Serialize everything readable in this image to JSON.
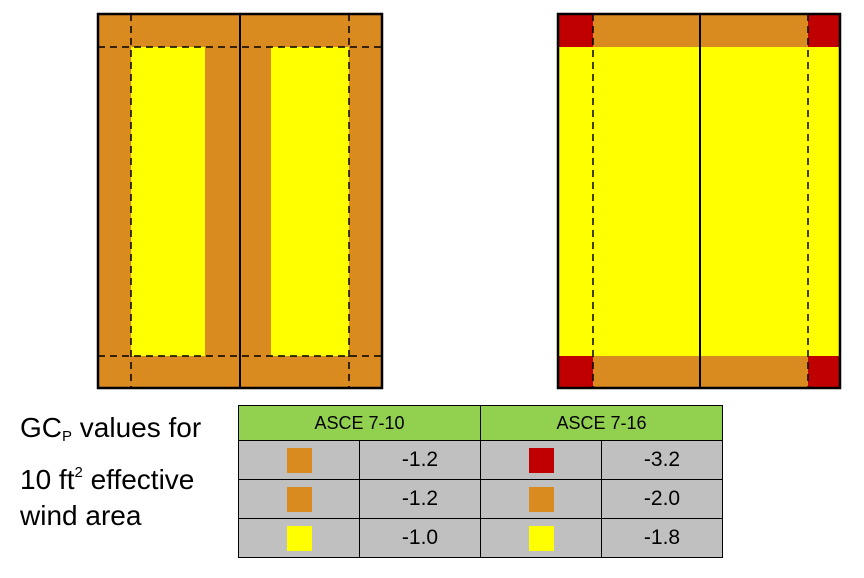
{
  "colors": {
    "orange": "#d98b1f",
    "yellow": "#ffff00",
    "red": "#c00000",
    "header_green": "#92d050",
    "cell_gray": "#c0c0c0"
  },
  "caption": {
    "line1_main": "GC",
    "line1_sub": "P",
    "line1_rest": " values for",
    "line2_main": "10 ft",
    "line2_sup": "2",
    "line2_rest": " effective",
    "line3": "wind area"
  },
  "table": {
    "headers": [
      "ASCE 7-10",
      "ASCE 7-16"
    ],
    "rows": [
      {
        "left_swatch": "orange",
        "left_value": "-1.2",
        "right_swatch": "red",
        "right_value": "-3.2"
      },
      {
        "left_swatch": "orange",
        "left_value": "-1.2",
        "right_swatch": "orange",
        "right_value": "-2.0"
      },
      {
        "left_swatch": "yellow",
        "left_value": "-1.0",
        "right_swatch": "yellow",
        "right_value": "-1.8"
      }
    ]
  }
}
